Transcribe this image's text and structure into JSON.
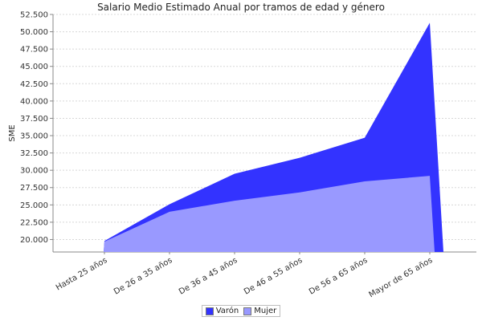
{
  "chart_data": {
    "type": "area",
    "title": "Salario Medio Estimado Anual por tramos de edad y género",
    "xlabel": "",
    "ylabel": "SME",
    "categories": [
      "Hasta 25 años",
      "De 26 a 35 años",
      "De 36 a 45 años",
      "De 46 a 55 años",
      "De 56 a 65 años",
      "Mayor de 65 años"
    ],
    "ylim": [
      18200,
      52500
    ],
    "yticks": [
      "20.000",
      "22.500",
      "25.000",
      "27.500",
      "30.000",
      "32.500",
      "35.000",
      "37.500",
      "40.000",
      "42.500",
      "45.000",
      "47.500",
      "50.000",
      "52.500"
    ],
    "series": [
      {
        "name": "Varón",
        "color": "#3333ff",
        "values": [
          19800,
          25100,
          29500,
          31800,
          34700,
          51300
        ]
      },
      {
        "name": "Mujer",
        "color": "#9999ff",
        "values": [
          19700,
          24000,
          25600,
          26800,
          28400,
          29200
        ]
      }
    ],
    "grid": true,
    "legend_position": "bottom"
  }
}
